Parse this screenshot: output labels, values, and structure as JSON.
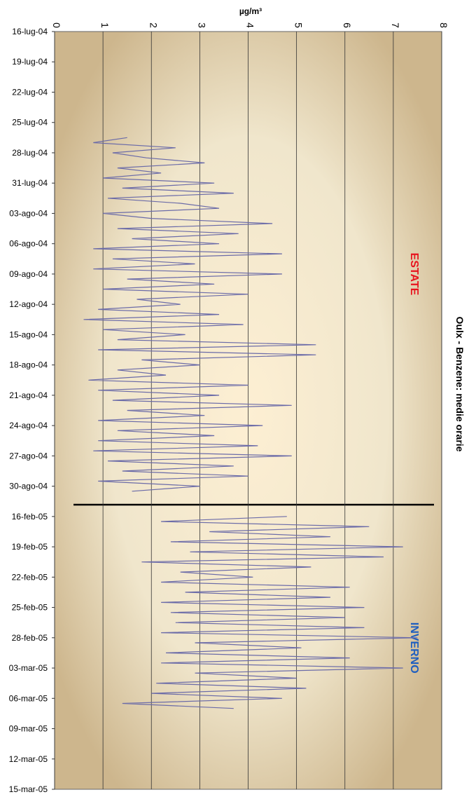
{
  "chart_data": {
    "type": "line",
    "title": "Oulx - Benzene: medie orarie",
    "ylabel": "µg/m³",
    "annotations": [
      {
        "text": "ESTATE",
        "color": "#e8141e",
        "x": 24
      },
      {
        "text": "INVERNO",
        "color": "#1f5fbf",
        "x": 61
      }
    ],
    "color": "#6b6ba8",
    "grid": true,
    "ylim": [
      0,
      8
    ],
    "yticks": [
      0,
      1,
      2,
      3,
      4,
      5,
      6,
      7,
      8
    ],
    "xlim": [
      0,
      75
    ],
    "xticks": [
      {
        "value": 0,
        "label": "16-lug-04"
      },
      {
        "value": 3,
        "label": "19-lug-04"
      },
      {
        "value": 6,
        "label": "22-lug-04"
      },
      {
        "value": 9,
        "label": "25-lug-04"
      },
      {
        "value": 12,
        "label": "28-lug-04"
      },
      {
        "value": 15,
        "label": "31-lug-04"
      },
      {
        "value": 18,
        "label": "03-ago-04"
      },
      {
        "value": 21,
        "label": "06-ago-04"
      },
      {
        "value": 24,
        "label": "09-ago-04"
      },
      {
        "value": 27,
        "label": "12-ago-04"
      },
      {
        "value": 30,
        "label": "15-ago-04"
      },
      {
        "value": 33,
        "label": "18-ago-04"
      },
      {
        "value": 36,
        "label": "21-ago-04"
      },
      {
        "value": 39,
        "label": "24-ago-04"
      },
      {
        "value": 42,
        "label": "27-ago-04"
      },
      {
        "value": 45,
        "label": "30-ago-04"
      },
      {
        "value": 48,
        "label": "16-feb-05"
      },
      {
        "value": 51,
        "label": "19-feb-05"
      },
      {
        "value": 54,
        "label": "22-feb-05"
      },
      {
        "value": 57,
        "label": "25-feb-05"
      },
      {
        "value": 60,
        "label": "28-feb-05"
      },
      {
        "value": 63,
        "label": "03-mar-05"
      },
      {
        "value": 66,
        "label": "06-mar-05"
      },
      {
        "value": 69,
        "label": "09-mar-05"
      },
      {
        "value": 72,
        "label": "12-mar-05"
      },
      {
        "value": 75,
        "label": "15-mar-05"
      }
    ],
    "x": [
      10.5,
      11,
      11.5,
      12,
      12.5,
      13,
      13.5,
      14,
      14.5,
      15,
      15.5,
      16,
      16.5,
      17,
      17.5,
      18,
      18.5,
      19,
      19.5,
      20,
      20.5,
      21,
      21.5,
      22,
      22.5,
      23,
      23.5,
      24,
      24.5,
      25,
      25.5,
      26,
      26.5,
      27,
      27.5,
      28,
      28.5,
      29,
      29.5,
      30,
      30.5,
      31,
      31.5,
      32,
      32.5,
      33,
      33.5,
      34,
      34.5,
      35,
      35.5,
      36,
      36.5,
      37,
      37.5,
      38,
      38.5,
      39,
      39.5,
      40,
      40.5,
      41,
      41.5,
      42,
      42.5,
      43,
      43.5,
      44,
      44.5,
      45,
      45.5,
      47,
      48,
      48.5,
      49,
      49.5,
      50,
      50.5,
      51,
      51.5,
      52,
      52.5,
      53,
      53.5,
      54,
      54.5,
      55,
      55.5,
      56,
      56.5,
      57,
      57.5,
      58,
      58.5,
      59,
      59.5,
      60,
      60.5,
      61,
      61.5,
      62,
      62.5,
      63,
      63.5,
      64,
      64.5,
      65,
      65.5,
      66,
      66.5,
      67
    ],
    "values": [
      1.5,
      0.8,
      2.5,
      1.2,
      1.9,
      3.1,
      1.3,
      2.2,
      1.0,
      3.3,
      1.4,
      3.7,
      1.1,
      2.6,
      3.4,
      1.0,
      2.0,
      4.5,
      1.3,
      3.8,
      1.6,
      3.4,
      0.8,
      4.7,
      1.2,
      2.9,
      0.8,
      4.7,
      1.5,
      3.3,
      1.0,
      4.0,
      1.7,
      2.6,
      0.9,
      3.4,
      0.6,
      3.9,
      1.0,
      2.7,
      1.3,
      5.4,
      0.9,
      5.4,
      1.8,
      3.0,
      1.3,
      2.3,
      0.7,
      4.0,
      0.9,
      3.4,
      1.2,
      4.9,
      1.5,
      3.1,
      0.9,
      4.3,
      1.3,
      3.3,
      0.9,
      4.2,
      0.8,
      4.9,
      1.1,
      3.7,
      1.4,
      4.0,
      0.9,
      3.0,
      1.6,
      null,
      4.8,
      2.2,
      6.5,
      3.2,
      5.7,
      2.4,
      7.2,
      2.8,
      6.8,
      1.8,
      5.3,
      2.6,
      4.1,
      2.2,
      6.1,
      2.7,
      5.7,
      2.2,
      6.4,
      2.4,
      6.0,
      2.5,
      6.4,
      2.2,
      7.5,
      2.9,
      5.1,
      2.3,
      6.1,
      2.2,
      7.2,
      2.9,
      5.0,
      2.1,
      5.2,
      2.0,
      4.7,
      1.4,
      3.7
    ]
  }
}
